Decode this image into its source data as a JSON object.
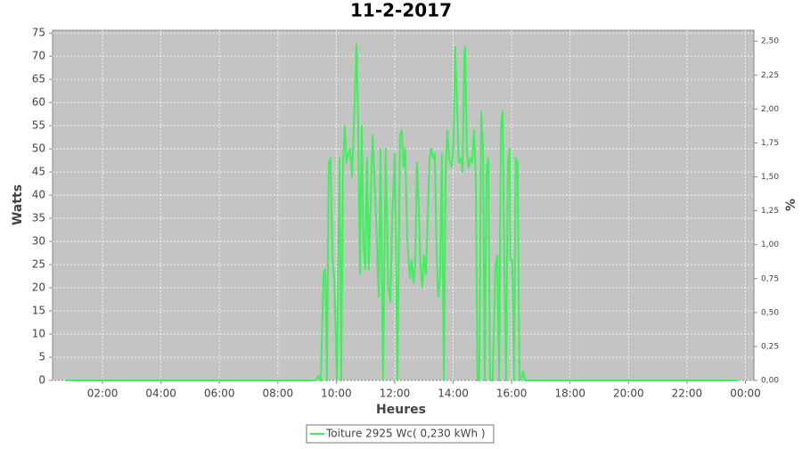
{
  "chart_data": {
    "type": "line",
    "title": "11-2-2017",
    "x_label": "Heures",
    "y_label": "Watts",
    "y2_label": "%",
    "xlim": [
      0.29,
      24.29
    ],
    "xticks": [
      {
        "value": 2,
        "label": "02:00"
      },
      {
        "value": 4,
        "label": "04:00"
      },
      {
        "value": 6,
        "label": "06:00"
      },
      {
        "value": 8,
        "label": "08:00"
      },
      {
        "value": 10,
        "label": "10:00"
      },
      {
        "value": 12,
        "label": "12:00"
      },
      {
        "value": 14,
        "label": "14:00"
      },
      {
        "value": 16,
        "label": "16:00"
      },
      {
        "value": 18,
        "label": "18:00"
      },
      {
        "value": 20,
        "label": "20:00"
      },
      {
        "value": 22,
        "label": "22:00"
      },
      {
        "value": 24,
        "label": "00:00"
      }
    ],
    "ylim": [
      0,
      75.6
    ],
    "yticks": [
      0,
      5,
      10,
      15,
      20,
      25,
      30,
      35,
      40,
      45,
      50,
      55,
      60,
      65,
      70,
      75
    ],
    "y2lim": [
      0,
      2.58
    ],
    "y2ticks": [
      {
        "value": 0,
        "label": "0,00"
      },
      {
        "value": 0.25,
        "label": "0,25"
      },
      {
        "value": 0.5,
        "label": "0,50"
      },
      {
        "value": 0.75,
        "label": "0,75"
      },
      {
        "value": 1,
        "label": "1,00"
      },
      {
        "value": 1.25,
        "label": "1,25"
      },
      {
        "value": 1.5,
        "label": "1,50"
      },
      {
        "value": 1.75,
        "label": "1,75"
      },
      {
        "value": 2,
        "label": "2,00"
      },
      {
        "value": 2.25,
        "label": "2,25"
      },
      {
        "value": 2.5,
        "label": "2,50"
      }
    ],
    "grid": true,
    "legend": "bottom",
    "series": [
      {
        "name": "Toiture 2925 Wc( 0,230 kWh )",
        "color": "#3ef05a",
        "x": [
          0.72,
          1,
          2,
          3,
          4,
          5,
          6,
          7,
          8,
          9,
          9.31,
          9.38,
          9.47,
          9.56,
          9.62,
          9.68,
          9.74,
          9.8,
          9.87,
          9.93,
          10.02,
          10.11,
          10.17,
          10.23,
          10.29,
          10.35,
          10.41,
          10.47,
          10.54,
          10.6,
          10.69,
          10.75,
          10.81,
          10.87,
          10.93,
          10.99,
          11.05,
          11.11,
          11.24,
          11.3,
          11.36,
          11.45,
          11.51,
          11.6,
          11.69,
          11.78,
          11.85,
          11.91,
          12.0,
          12.09,
          12.18,
          12.24,
          12.3,
          12.36,
          12.43,
          12.52,
          12.58,
          12.64,
          12.7,
          12.76,
          12.82,
          12.88,
          12.94,
          13.0,
          13.07,
          13.19,
          13.25,
          13.31,
          13.37,
          13.43,
          13.49,
          13.55,
          13.61,
          13.68,
          13.74,
          13.8,
          13.86,
          13.95,
          14.01,
          14.07,
          14.13,
          14.19,
          14.26,
          14.32,
          14.38,
          14.41,
          14.47,
          14.53,
          14.59,
          14.65,
          14.71,
          14.77,
          14.83,
          14.89,
          14.96,
          15.02,
          15.08,
          15.14,
          15.2,
          15.26,
          15.35,
          15.45,
          15.51,
          15.57,
          15.63,
          15.69,
          15.75,
          15.81,
          15.87,
          15.93,
          15.96,
          16.02,
          16.08,
          16.14,
          16.2,
          16.27,
          16.36,
          16.39,
          16.45,
          16.79,
          18,
          20,
          22,
          23.74
        ],
        "values": [
          0,
          0,
          0,
          0,
          0,
          0,
          0,
          0,
          0,
          0,
          0,
          1,
          0,
          23,
          24,
          0,
          47,
          48,
          26,
          22,
          0,
          48,
          0,
          47,
          55,
          47,
          49,
          50,
          44,
          55,
          72.5,
          55,
          23,
          55,
          30,
          24,
          48,
          24,
          53,
          45,
          35,
          18,
          50,
          0,
          50,
          20,
          17,
          34,
          49,
          0,
          53,
          54,
          46,
          50,
          30,
          22,
          26,
          21,
          25,
          47,
          38,
          25,
          20,
          27,
          23,
          48,
          50,
          48,
          49,
          28,
          18,
          22,
          49,
          0,
          45,
          54,
          48,
          46,
          51,
          72,
          60,
          47,
          48,
          45,
          70,
          72,
          49,
          46,
          48,
          47,
          54,
          45,
          0,
          0,
          58,
          50,
          0,
          45,
          48,
          0,
          0,
          25,
          27,
          0,
          55,
          58,
          25,
          0,
          47,
          50,
          26,
          26,
          0,
          48,
          47,
          0,
          1,
          2,
          0,
          0,
          0,
          0,
          0,
          0
        ]
      }
    ]
  }
}
